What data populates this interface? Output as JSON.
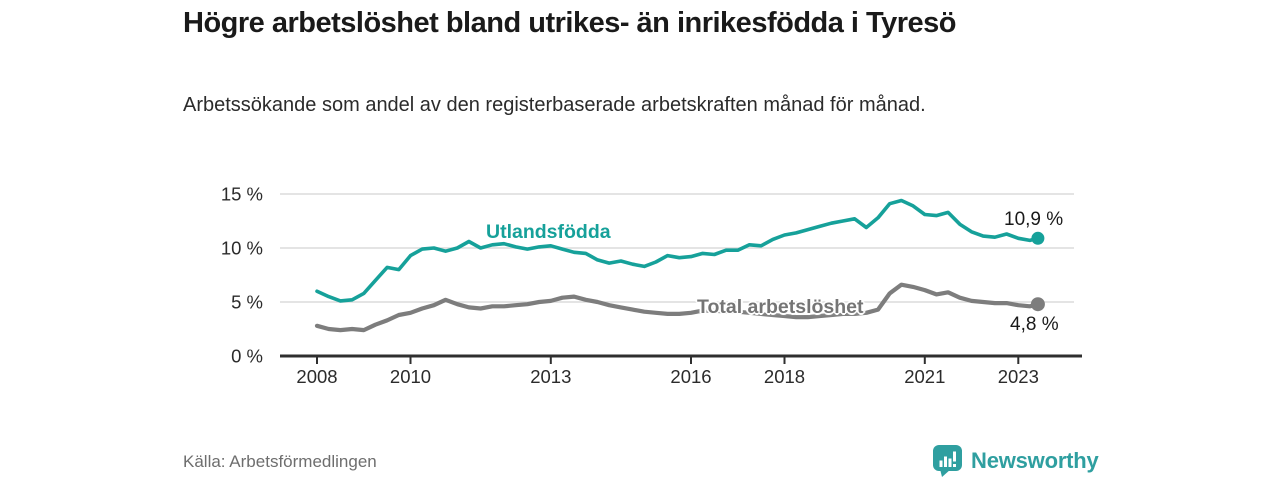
{
  "chart_data": {
    "type": "line",
    "title": "Högre arbetslöshet bland utrikes- än inrikesfödda i Tyresö",
    "subtitle": "Arbetssökande som andel av den registerbaserade arbetskraften månad för månad.",
    "source": "Källa: Arbetsförmedlingen",
    "unit": "%",
    "x_start": 2008,
    "x_step": 0.25,
    "xlim": [
      2007.2,
      2024.4
    ],
    "ylim": [
      0,
      16
    ],
    "grid": "horizontal",
    "legend_position": "inline-labels",
    "x_ticks": [
      2008,
      2010,
      2013,
      2016,
      2018,
      2021,
      2023
    ],
    "x_tick_labels": [
      "2008",
      "2010",
      "2013",
      "2016",
      "2018",
      "2021",
      "2023"
    ],
    "y_ticks": [
      0,
      5,
      10,
      15
    ],
    "y_tick_labels": [
      "0 %",
      "5 %",
      "10 %",
      "15 %"
    ],
    "series": [
      {
        "id": "utlandsfodda",
        "name": "Utlandsfödda",
        "color": "#16a19a",
        "values": [
          6.0,
          5.5,
          5.1,
          5.2,
          5.8,
          7.0,
          8.2,
          8.0,
          9.3,
          9.9,
          10.0,
          9.7,
          10.0,
          10.6,
          10.0,
          10.3,
          10.4,
          10.1,
          9.9,
          10.1,
          10.2,
          9.9,
          9.6,
          9.5,
          8.9,
          8.6,
          8.8,
          8.5,
          8.3,
          8.7,
          9.3,
          9.1,
          9.2,
          9.5,
          9.4,
          9.8,
          9.8,
          10.3,
          10.2,
          10.8,
          11.2,
          11.4,
          11.7,
          12.0,
          12.3,
          12.5,
          12.7,
          11.9,
          12.8,
          14.1,
          14.4,
          13.9,
          13.1,
          13.0,
          13.3,
          12.2,
          11.5,
          11.1,
          11.0,
          11.3,
          10.9,
          10.7
        ],
        "end_x": 2023.42,
        "end_value": 10.9,
        "end_label": "10,9 %"
      },
      {
        "id": "total-arbetsloshet",
        "name": "Total arbetslöshet",
        "color": "#7d7d7d",
        "values": [
          2.8,
          2.5,
          2.4,
          2.5,
          2.4,
          2.9,
          3.3,
          3.8,
          4.0,
          4.4,
          4.7,
          5.2,
          4.8,
          4.5,
          4.4,
          4.6,
          4.6,
          4.7,
          4.8,
          5.0,
          5.1,
          5.4,
          5.5,
          5.2,
          5.0,
          4.7,
          4.5,
          4.3,
          4.1,
          4.0,
          3.9,
          3.9,
          4.0,
          4.2,
          4.2,
          4.1,
          4.1,
          4.0,
          3.9,
          3.8,
          3.7,
          3.6,
          3.6,
          3.7,
          3.8,
          3.9,
          3.9,
          4.0,
          4.3,
          5.8,
          6.6,
          6.4,
          6.1,
          5.7,
          5.9,
          5.4,
          5.1,
          5.0,
          4.9,
          4.9,
          4.7,
          4.6
        ],
        "end_x": 2023.42,
        "end_value": 4.8,
        "end_label": "4,8 %"
      }
    ]
  },
  "footer": {
    "brand": "Newsworthy"
  },
  "colors": {
    "accent": "#16a19a",
    "series_gray": "#7d7d7d",
    "grid": "#dbdbdb",
    "axis": "#2f2f2f",
    "tick_text": "#2b2b2b",
    "text": "#1a1a1a",
    "muted": "#6e6e6e",
    "brand": "#2f9fa0"
  }
}
